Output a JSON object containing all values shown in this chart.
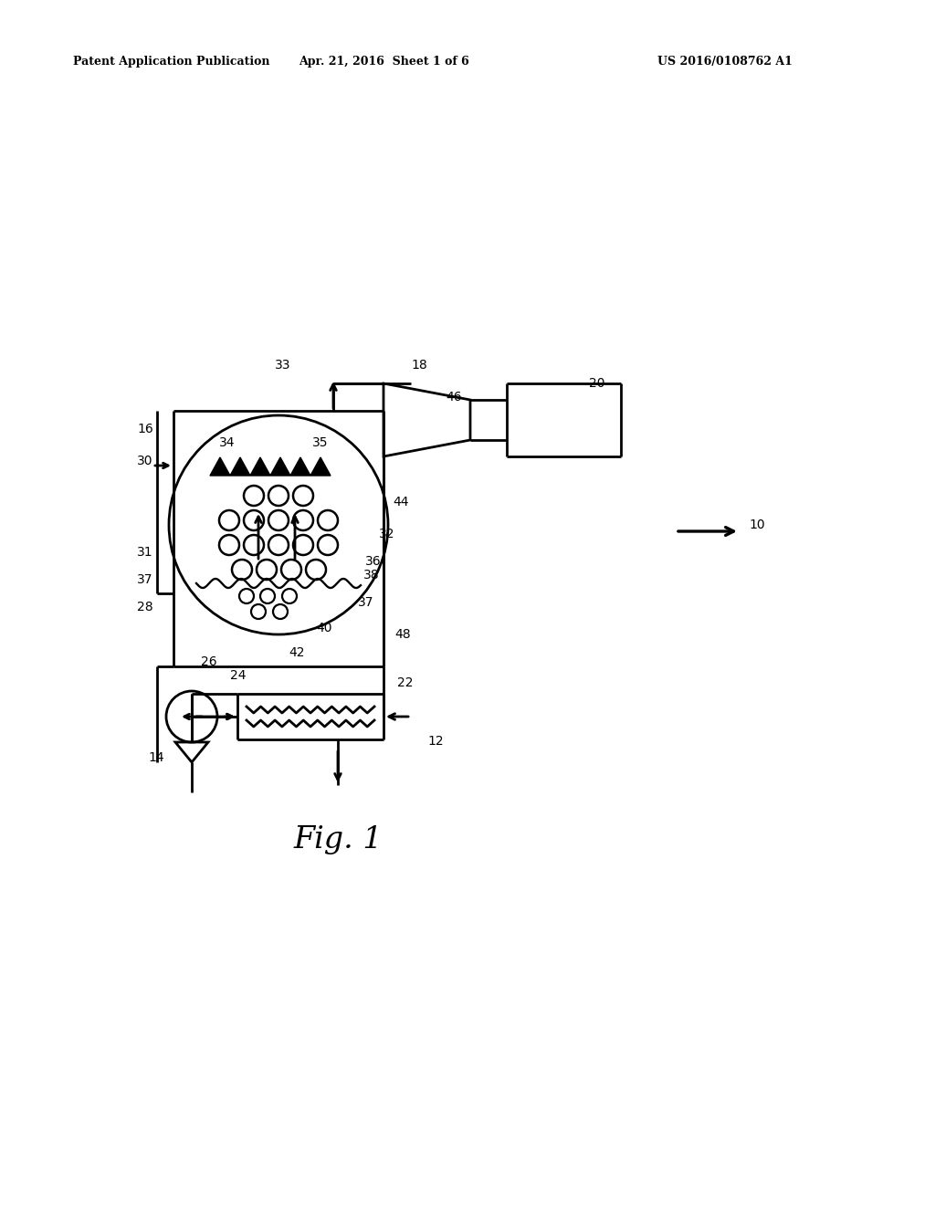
{
  "bg_color": "#ffffff",
  "line_color": "#000000",
  "header_left": "Patent Application Publication",
  "header_mid": "Apr. 21, 2016  Sheet 1 of 6",
  "header_right": "US 2016/0108762 A1"
}
